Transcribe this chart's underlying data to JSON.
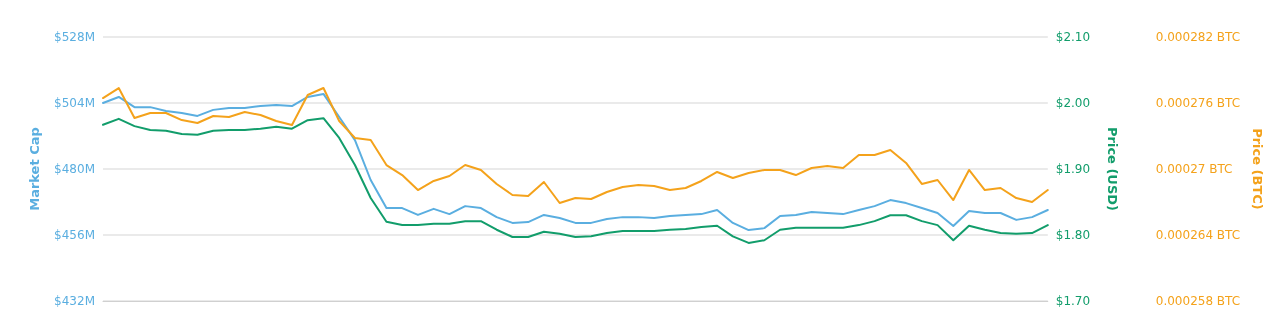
{
  "chart_data": {
    "type": "line",
    "ylabel": "Market Cap",
    "y2label": "Price (USD)",
    "y3label": "Price (BTC)",
    "categories": [
      null,
      null,
      null,
      null,
      null,
      null,
      null,
      null,
      null,
      null,
      null,
      null,
      null,
      null,
      null,
      null,
      null,
      null,
      null,
      null,
      null,
      null,
      null,
      null,
      null,
      null,
      null,
      null,
      null,
      null,
      null,
      null,
      null,
      null,
      null,
      null,
      null,
      null,
      null,
      null,
      null,
      null,
      null,
      null,
      null,
      null,
      null,
      null,
      null,
      null,
      null,
      null,
      null,
      null,
      null,
      null,
      null,
      null,
      null,
      null,
      null
    ],
    "ylim": [
      432,
      528
    ],
    "yticks": [
      {
        "value": 432,
        "label": "$432M"
      },
      {
        "value": 456,
        "label": "$456M"
      },
      {
        "value": 480,
        "label": "$480M"
      },
      {
        "value": 504,
        "label": "$504M"
      },
      {
        "value": 528,
        "label": "$528M"
      }
    ],
    "y2lim": [
      1.7,
      2.1
    ],
    "y2ticks": [
      {
        "value": 1.7,
        "label": "$1.70"
      },
      {
        "value": 1.8,
        "label": "$1.80"
      },
      {
        "value": 1.9,
        "label": "$1.90"
      },
      {
        "value": 2.0,
        "label": "$2.00"
      },
      {
        "value": 2.1,
        "label": "$2.10"
      }
    ],
    "y3lim": [
      0.000258,
      0.000282
    ],
    "y3ticks": [
      {
        "value": 0.000258,
        "label": "0.000258 BTC"
      },
      {
        "value": 0.000264,
        "label": "0.000264 BTC"
      },
      {
        "value": 0.00027,
        "label": "0.00027 BTC"
      },
      {
        "value": 0.000276,
        "label": "0.000276 BTC"
      },
      {
        "value": 0.000282,
        "label": "0.000282 BTC"
      }
    ],
    "grid": "y",
    "tick_labels": "y",
    "marker": "none",
    "line_style": "solid",
    "series": [
      {
        "color": "#5aaee0",
        "values": [
          504,
          506.2,
          502.5,
          502.5,
          501.1,
          500.4,
          499.3,
          501.5,
          502.2,
          502.2,
          502.9,
          503.3,
          502.9,
          506.2,
          507.3,
          498.9,
          490.5,
          476,
          465.8,
          465.8,
          463.3,
          465.5,
          463.6,
          466.5,
          465.8,
          462.5,
          460.4,
          460.7,
          463.3,
          462.2,
          460.4,
          460.4,
          461.8,
          462.5,
          462.5,
          462.2,
          462.9,
          463.3,
          463.6,
          465.1,
          460.4,
          457.8,
          458.5,
          462.9,
          463.3,
          464.4,
          464,
          463.6,
          465.1,
          466.5,
          468.7,
          467.6,
          465.8,
          464,
          459.3,
          464.7,
          464,
          464,
          461.5,
          462.5,
          465.1
        ]
      },
      {
        "color": "#129d6b",
        "axis": "y2",
        "values": [
          1.967,
          1.976,
          1.965,
          1.959,
          1.958,
          1.953,
          1.952,
          1.958,
          1.959,
          1.959,
          1.961,
          1.964,
          1.961,
          1.974,
          1.977,
          1.947,
          1.906,
          1.856,
          1.82,
          1.815,
          1.815,
          1.817,
          1.817,
          1.821,
          1.821,
          1.808,
          1.797,
          1.797,
          1.805,
          1.802,
          1.797,
          1.798,
          1.803,
          1.806,
          1.806,
          1.806,
          1.808,
          1.809,
          1.812,
          1.814,
          1.798,
          1.788,
          1.792,
          1.808,
          1.811,
          1.811,
          1.811,
          1.811,
          1.815,
          1.821,
          1.83,
          1.83,
          1.821,
          1.815,
          1.792,
          1.814,
          1.808,
          1.803,
          1.802,
          1.803,
          1.815
        ]
      },
      {
        "color": "#f4a21b",
        "axis": "y3",
        "values": [
          0.00027645,
          0.00027736,
          0.00027464,
          0.00027509,
          0.00027509,
          0.00027445,
          0.00027418,
          0.00027482,
          0.00027473,
          0.00027518,
          0.00027491,
          0.00027436,
          0.000274,
          0.00027673,
          0.00027736,
          0.00027436,
          0.00027282,
          0.00027264,
          0.00027036,
          0.00026945,
          0.00026809,
          0.00026891,
          0.00026936,
          0.00027036,
          0.00026991,
          0.00026864,
          0.00026764,
          0.00026755,
          0.00026882,
          0.00026691,
          0.00026736,
          0.00026727,
          0.00026791,
          0.00026836,
          0.00026855,
          0.00026845,
          0.00026809,
          0.00026827,
          0.00026891,
          0.00026973,
          0.00026918,
          0.00026964,
          0.00026991,
          0.00026991,
          0.00026945,
          0.00027009,
          0.00027027,
          0.00027009,
          0.00027127,
          0.00027127,
          0.00027173,
          0.00027055,
          0.00026864,
          0.000269,
          0.00026718,
          0.00026991,
          0.00026809,
          0.00026827,
          0.00026736,
          0.000267,
          0.00026809
        ]
      }
    ]
  }
}
